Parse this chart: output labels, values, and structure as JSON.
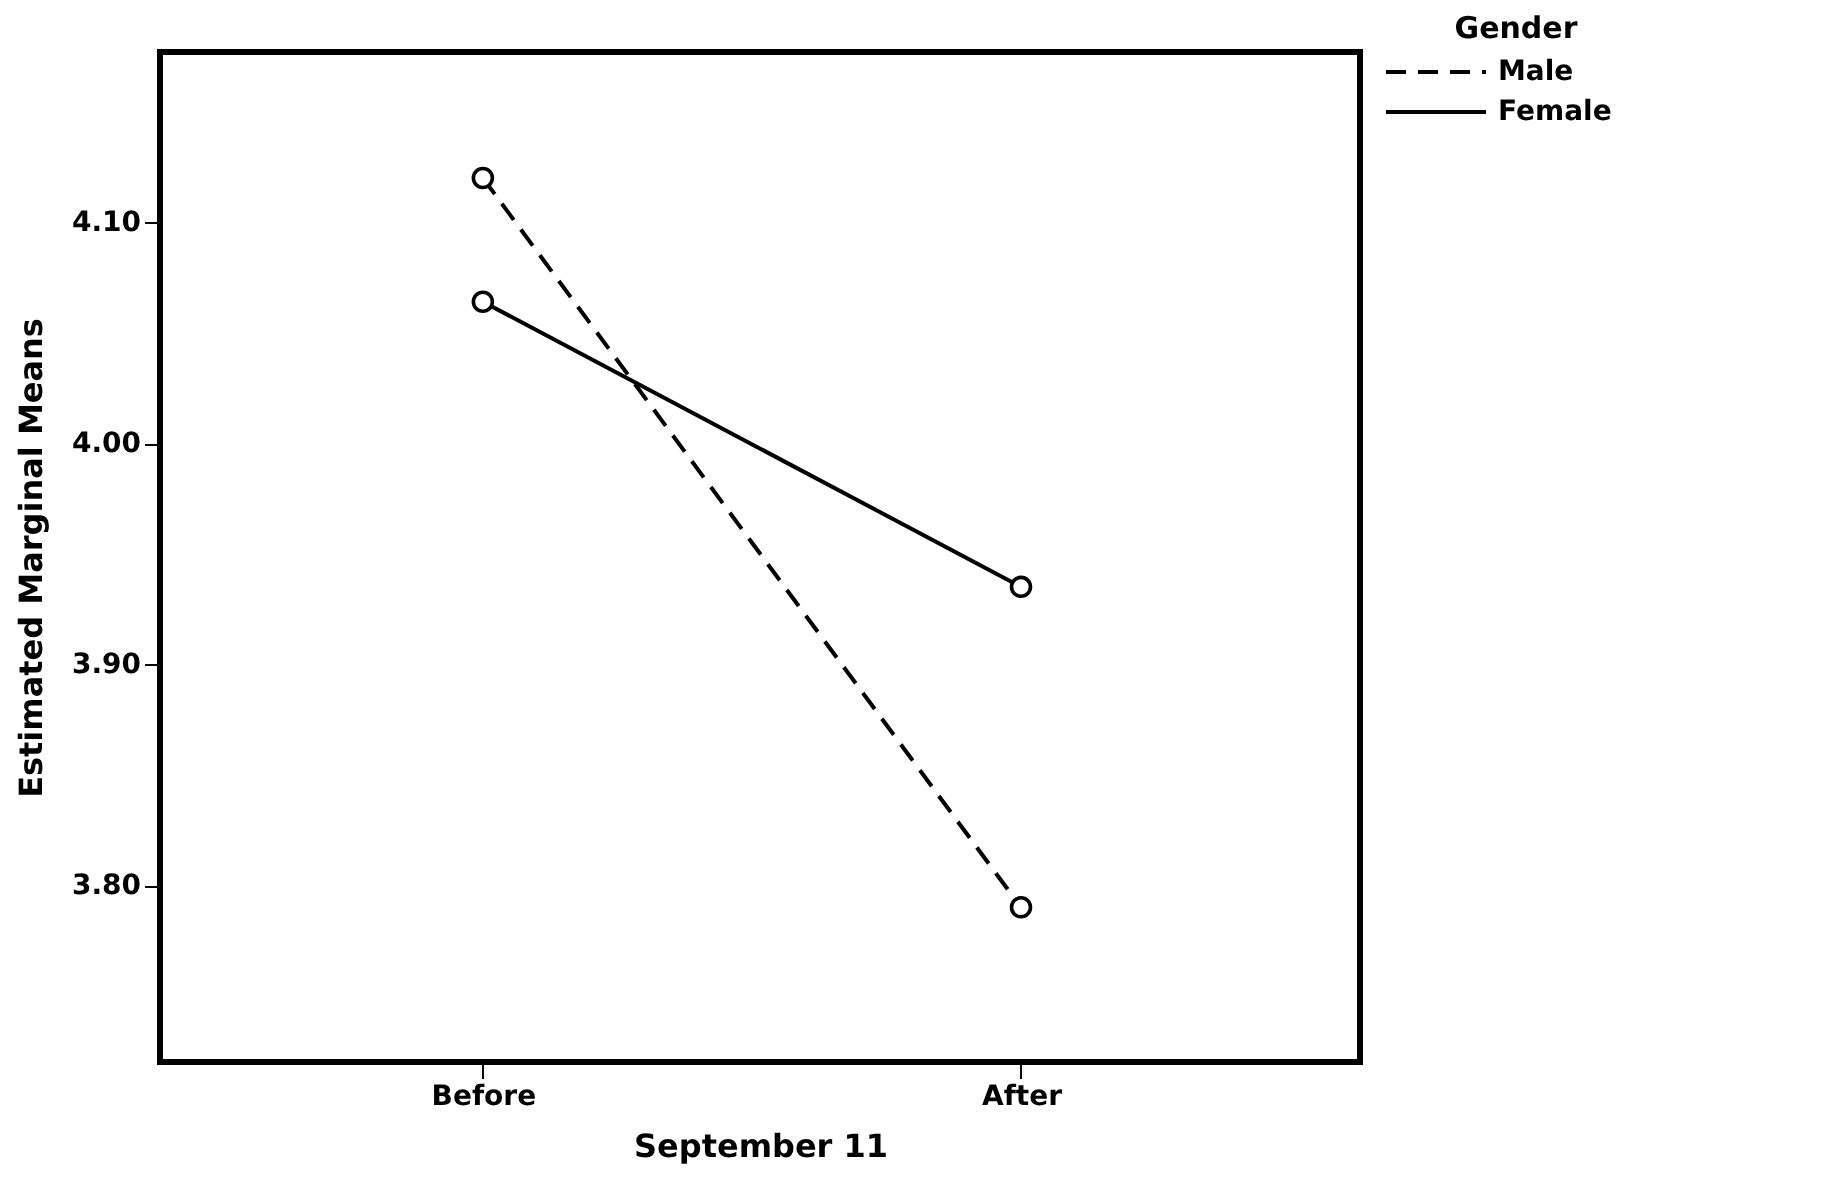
{
  "chart_data": {
    "type": "line",
    "xlabel": "September 11",
    "ylabel": "Estimated Marginal Means",
    "legend_title": "Gender",
    "categories": [
      "Before",
      "After"
    ],
    "series": [
      {
        "name": "Male",
        "color": "#000000",
        "line_style": "dashed",
        "values": [
          4.12,
          3.79
        ]
      },
      {
        "name": "Female",
        "color": "#000000",
        "line_style": "solid",
        "values": [
          4.064,
          3.935
        ]
      }
    ],
    "ylim": [
      3.72,
      4.177
    ],
    "yticks": [
      {
        "value": 3.8,
        "label": "3.80"
      },
      {
        "value": 3.9,
        "label": "3.90"
      },
      {
        "value": 4.0,
        "label": "4.00"
      },
      {
        "value": 4.1,
        "label": "4.10"
      }
    ],
    "marker": "circle",
    "grid": false,
    "legend": "top right"
  }
}
